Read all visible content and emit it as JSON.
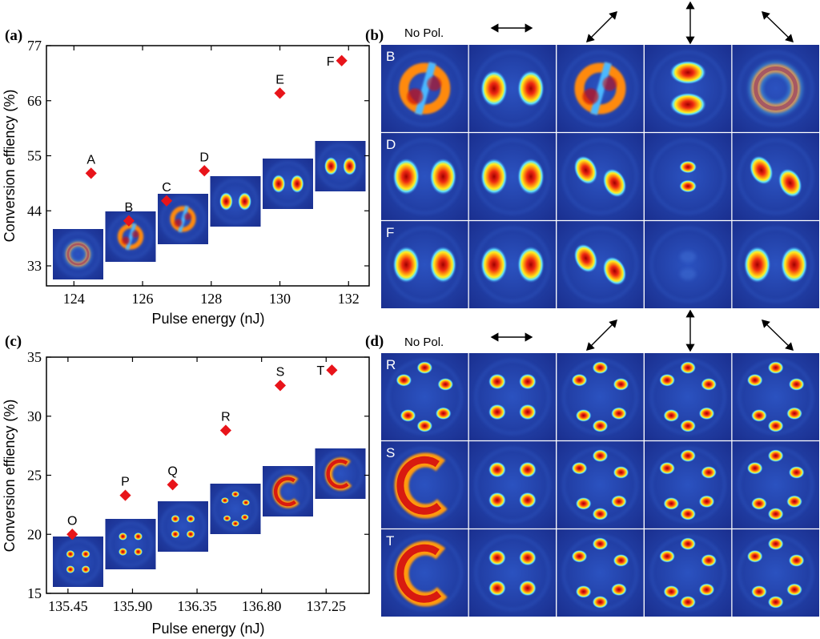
{
  "panels": {
    "a": {
      "label": "(a)"
    },
    "b": {
      "label": "(b)",
      "column_headers": [
        "No Pol.",
        "horizontal-arrow",
        "diagonal-up-right-arrow",
        "vertical-arrow",
        "diagonal-down-right-arrow"
      ],
      "row_labels": [
        "B",
        "D",
        "F"
      ],
      "no_pol_label": "No Pol."
    },
    "c": {
      "label": "(c)"
    },
    "d": {
      "label": "(d)",
      "column_headers": [
        "No Pol.",
        "horizontal-arrow",
        "diagonal-up-right-arrow",
        "vertical-arrow",
        "diagonal-down-right-arrow"
      ],
      "row_labels": [
        "R",
        "S",
        "T"
      ],
      "no_pol_label": "No Pol."
    }
  },
  "chart_data": [
    {
      "type": "scatter",
      "id": "a",
      "title": "",
      "xlabel": "Pulse energy (nJ)",
      "ylabel": "Conversion effiency (%)",
      "xlim": [
        123.2,
        132.6
      ],
      "ylim": [
        29,
        77
      ],
      "xticks": [
        124,
        126,
        128,
        130,
        132
      ],
      "xtick_labels": [
        "124",
        "126",
        "128",
        "130",
        "132"
      ],
      "yticks": [
        33,
        44,
        55,
        66,
        77
      ],
      "ytick_labels": [
        "33",
        "44",
        "55",
        "66",
        "77"
      ],
      "marker_color": "#e8141a",
      "points": [
        {
          "label": "A",
          "x": 124.5,
          "y": 51.5
        },
        {
          "label": "B",
          "x": 125.6,
          "y": 42.0
        },
        {
          "label": "C",
          "x": 126.7,
          "y": 46.0
        },
        {
          "label": "D",
          "x": 127.8,
          "y": 52.0
        },
        {
          "label": "E",
          "x": 130.0,
          "y": 67.5
        },
        {
          "label": "F",
          "x": 131.8,
          "y": 74.0
        }
      ]
    },
    {
      "type": "scatter",
      "id": "c",
      "title": "",
      "xlabel": "Pulse energy (nJ)",
      "ylabel": "Conversion effiency (%)",
      "xlim": [
        135.3,
        137.55
      ],
      "ylim": [
        15,
        35
      ],
      "xticks": [
        135.45,
        135.9,
        136.35,
        136.8,
        137.25
      ],
      "xtick_labels": [
        "135.45",
        "135.90",
        "136.35",
        "136.80",
        "137.25"
      ],
      "yticks": [
        15,
        20,
        25,
        30,
        35
      ],
      "ytick_labels": [
        "15",
        "20",
        "25",
        "30",
        "35"
      ],
      "marker_color": "#e8141a",
      "points": [
        {
          "label": "O",
          "x": 135.48,
          "y": 20.0
        },
        {
          "label": "P",
          "x": 135.85,
          "y": 23.3
        },
        {
          "label": "Q",
          "x": 136.18,
          "y": 24.2
        },
        {
          "label": "R",
          "x": 136.55,
          "y": 28.8
        },
        {
          "label": "S",
          "x": 136.93,
          "y": 32.6
        },
        {
          "label": "T",
          "x": 137.29,
          "y": 33.9
        }
      ]
    }
  ],
  "colors": {
    "map_bg": "#1d3fa8",
    "map_dark": "#1a2f8f",
    "marker": "#e8141a"
  }
}
